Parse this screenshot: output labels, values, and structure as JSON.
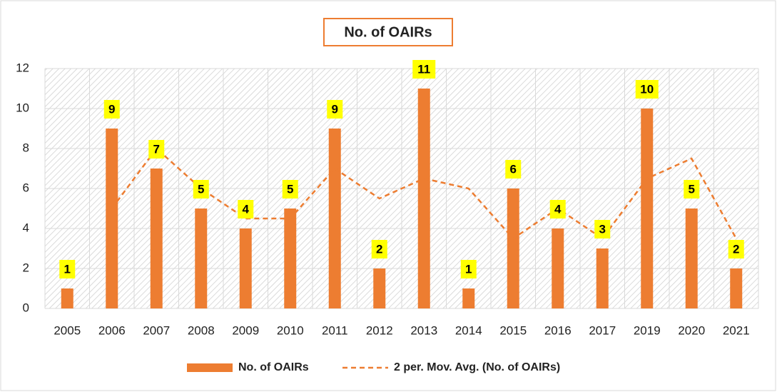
{
  "chart_data": {
    "type": "bar",
    "title": "No. of OAIRs",
    "categories": [
      "2005",
      "2006",
      "2007",
      "2008",
      "2009",
      "2010",
      "2011",
      "2012",
      "2013",
      "2014",
      "2015",
      "2016",
      "2017",
      "2019",
      "2020",
      "2021"
    ],
    "series": [
      {
        "name": "No. of OAIRs",
        "type": "bar",
        "color": "#ed7d31",
        "values": [
          1,
          9,
          7,
          5,
          4,
          5,
          9,
          2,
          11,
          1,
          6,
          4,
          3,
          10,
          5,
          2
        ]
      },
      {
        "name": "2 per. Mov. Avg. (No. of OAIRs)",
        "type": "line",
        "dashed": true,
        "color": "#ed7d31",
        "values": [
          null,
          5,
          8,
          6,
          4.5,
          4.5,
          7,
          5.5,
          6.5,
          6,
          3.5,
          5,
          3.5,
          6.5,
          7.5,
          3.5
        ]
      }
    ],
    "ylim": [
      0,
      12
    ],
    "yticks": [
      0,
      2,
      4,
      6,
      8,
      10,
      12
    ],
    "grid": true,
    "legend": "bottom"
  }
}
